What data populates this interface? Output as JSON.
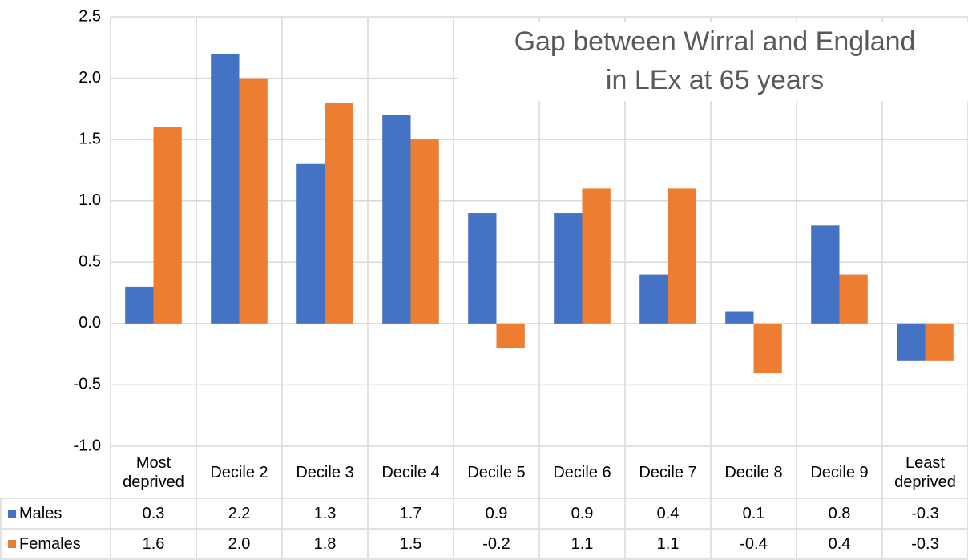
{
  "chart_data": {
    "type": "bar",
    "title": "Gap between Wirral and England\nin LEx at 65 years",
    "categories": [
      "Most\ndeprived",
      "Decile 2",
      "Decile 3",
      "Decile 4",
      "Decile 5",
      "Decile 6",
      "Decile 7",
      "Decile 8",
      "Decile 9",
      "Least\ndeprived"
    ],
    "series": [
      {
        "name": "Males",
        "color": "#4472c4",
        "values": [
          0.3,
          2.2,
          1.3,
          1.7,
          0.9,
          0.9,
          0.4,
          0.1,
          0.8,
          -0.3
        ]
      },
      {
        "name": "Females",
        "color": "#ed7d31",
        "values": [
          1.6,
          2.0,
          1.8,
          1.5,
          -0.2,
          1.1,
          1.1,
          -0.4,
          0.4,
          -0.3
        ],
        "value_labels": [
          "1.6",
          "2.0",
          "1.8",
          "1.5",
          "-0.2",
          "1.1",
          "1.1",
          "-0.4",
          "0.4",
          "-0.3"
        ]
      }
    ],
    "ylim": [
      -1,
      2.5
    ],
    "yticks": [
      -0.5,
      {
        "value": -1,
        "label": "-1.0"
      },
      {
        "value": 0,
        "label": "0.0"
      },
      0.5,
      {
        "value": 1,
        "label": "1.0"
      },
      1.5,
      {
        "value": 2,
        "label": "2.0"
      },
      2.5
    ],
    "grid": true
  }
}
